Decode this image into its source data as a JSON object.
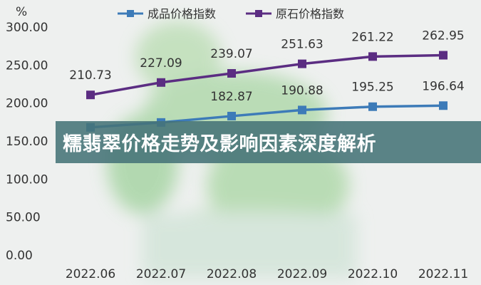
{
  "banner": {
    "title": "糯翡翠价格走势及影响因素深度解析"
  },
  "chart_data": {
    "type": "line",
    "ylabel": "%",
    "ylim": [
      0,
      300
    ],
    "yticks": [
      "0.00",
      "50.00",
      "100.00",
      "150.00",
      "200.00",
      "250.00",
      "300.00"
    ],
    "categories": [
      "2022.06",
      "2022.07",
      "2022.08",
      "2022.09",
      "2022.10",
      "2022.11"
    ],
    "legend_position": "top",
    "grid": false,
    "series": [
      {
        "name": "成品价格指数",
        "color": "#3d7bb8",
        "values": [
          168,
          174.5,
          182.87,
          190.88,
          195.25,
          196.64
        ],
        "labels": [
          "",
          "",
          "182.87",
          "190.88",
          "195.25",
          "196.64"
        ]
      },
      {
        "name": "原石价格指数",
        "color": "#5b2d82",
        "values": [
          210.73,
          227.09,
          239.07,
          251.63,
          261.22,
          262.95
        ],
        "labels": [
          "210.73",
          "227.09",
          "239.07",
          "251.63",
          "261.22",
          "262.95"
        ]
      }
    ]
  }
}
